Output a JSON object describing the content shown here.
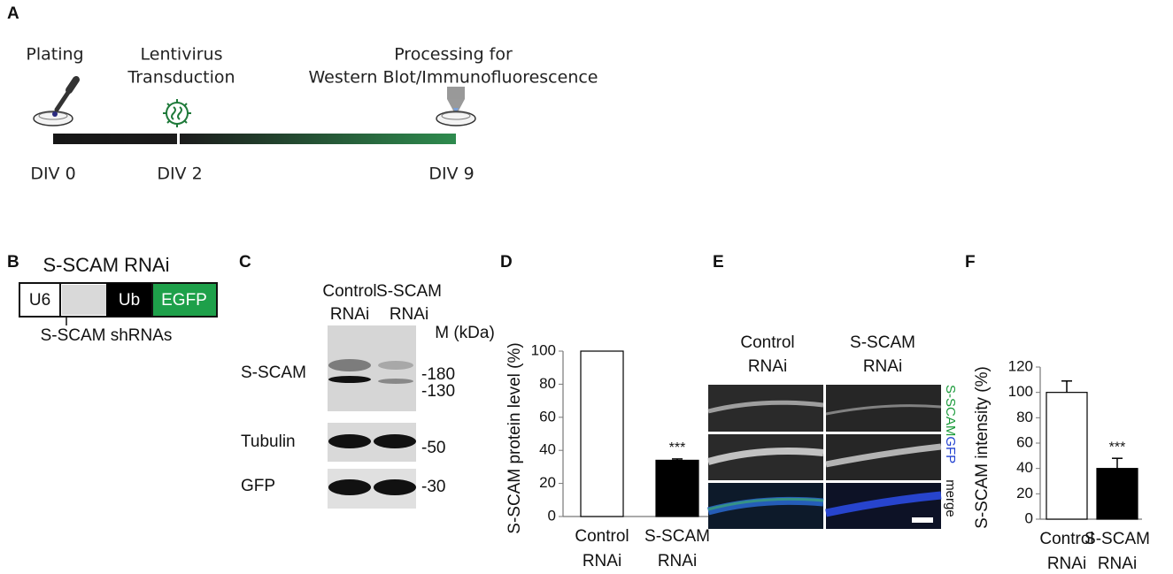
{
  "panel_labels": [
    "A",
    "B",
    "C",
    "D",
    "E",
    "F"
  ],
  "timeline": {
    "steps": [
      {
        "label": [
          "Plating"
        ],
        "day": "DIV 0"
      },
      {
        "label": [
          "Lentivirus",
          "Transduction"
        ],
        "day": "DIV 2"
      },
      {
        "label": [
          "Processing for",
          "Western Blot/Immunofluorescence"
        ],
        "day": "DIV 9"
      }
    ]
  },
  "construct": {
    "title": "S-SCAM RNAi",
    "elements": [
      "U6",
      "Ub",
      "EGFP"
    ],
    "caption": "S-SCAM shRNAs"
  },
  "western": {
    "lanes": [
      [
        "Control",
        "RNAi"
      ],
      [
        "S-SCAM",
        "RNAi"
      ]
    ],
    "marker_header": "M (kDa)",
    "rows": [
      {
        "name": "S-SCAM",
        "markers": [
          "-180",
          "-130"
        ]
      },
      {
        "name": "Tubulin",
        "markers": [
          "-50"
        ]
      },
      {
        "name": "GFP",
        "markers": [
          "-30"
        ]
      }
    ]
  },
  "imaging": {
    "columns": [
      [
        "Control",
        "RNAi"
      ],
      [
        "S-SCAM",
        "RNAi"
      ]
    ],
    "channels": [
      {
        "name": "S-SCAM",
        "color": "#1a9a3a"
      },
      {
        "name": "GFP",
        "color": "#1f3fd0"
      },
      {
        "name": "merge",
        "color": "#111111"
      }
    ]
  },
  "chart_data": [
    {
      "type": "bar",
      "y_label": "S-SCAM protein level (%)",
      "categories": [
        [
          "Control",
          "RNAi"
        ],
        [
          "S-SCAM",
          "RNAi"
        ]
      ],
      "values": [
        100,
        34
      ],
      "errors": [
        null,
        0.8
      ],
      "colors": [
        "#ffffff",
        "#000000"
      ],
      "significance": [
        null,
        "***"
      ],
      "ylim": [
        0,
        100
      ],
      "yticks": [
        0,
        20,
        40,
        60,
        80,
        100
      ]
    },
    {
      "type": "bar",
      "y_label": "S-SCAM intensity (%)",
      "categories": [
        [
          "Control",
          "RNAi"
        ],
        [
          "S-SCAM",
          "RNAi"
        ]
      ],
      "values": [
        100,
        40
      ],
      "errors": [
        9,
        8
      ],
      "colors": [
        "#ffffff",
        "#000000"
      ],
      "significance": [
        null,
        "***"
      ],
      "ylim": [
        0,
        120
      ],
      "yticks": [
        0,
        20,
        40,
        60,
        80,
        100,
        120
      ]
    }
  ]
}
